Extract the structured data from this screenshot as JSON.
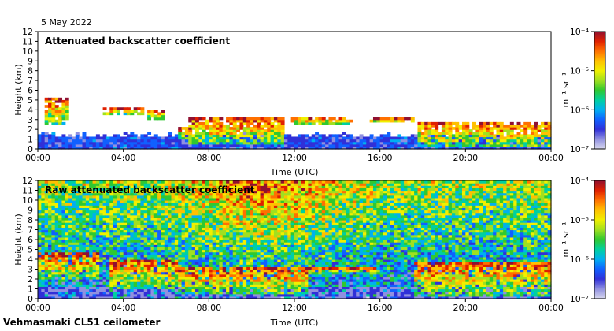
{
  "header": {
    "date": "5 May 2022"
  },
  "footer": {
    "instrument": "Vehmasmaki CL51 ceilometer"
  },
  "colormap": [
    "#d8d8ee",
    "#9090e0",
    "#3030d8",
    "#1060ff",
    "#00b0f0",
    "#00d0a0",
    "#30c830",
    "#a0e020",
    "#f0f000",
    "#ffc000",
    "#ff7000",
    "#e02000",
    "#901030"
  ],
  "chart_data": [
    {
      "type": "heatmap",
      "title": "Attenuated backscatter coefficient",
      "xlabel": "Time (UTC)",
      "ylabel": "Height (km)",
      "xticks": [
        "00:00",
        "04:00",
        "08:00",
        "12:00",
        "16:00",
        "20:00",
        "00:00"
      ],
      "xlim": [
        0,
        24
      ],
      "ylim": [
        0,
        12
      ],
      "yticks": [
        0,
        1,
        2,
        3,
        4,
        5,
        6,
        7,
        8,
        9,
        10,
        11,
        12
      ],
      "colorbar": {
        "unit": "m⁻¹ sr⁻¹",
        "ticks": [
          "10⁻⁷",
          "10⁻⁶",
          "10⁻⁵",
          "10⁻⁴"
        ],
        "range": [
          -7,
          -4
        ],
        "scale": "log"
      },
      "layers": [
        {
          "t": [
            0.2,
            1.3
          ],
          "h": [
            2.5,
            5.0
          ]
        },
        {
          "t": [
            2.9,
            4.9
          ],
          "h": [
            3.4,
            4.0
          ]
        },
        {
          "t": [
            5.0,
            5.9
          ],
          "h": [
            3.0,
            3.8
          ]
        },
        {
          "t": [
            6.5,
            7.1
          ],
          "h": [
            1.0,
            2.0
          ]
        },
        {
          "t": [
            7.0,
            11.5
          ],
          "h": [
            0.5,
            3.0
          ]
        },
        {
          "t": [
            11.7,
            14.6
          ],
          "h": [
            2.3,
            3.2
          ]
        },
        {
          "t": [
            15.5,
            17.5
          ],
          "h": [
            2.6,
            3.0
          ]
        },
        {
          "t": [
            17.7,
            24.0
          ],
          "h": [
            0.1,
            2.6
          ]
        }
      ]
    },
    {
      "type": "heatmap",
      "title": "Raw attenuated backscatter coefficient",
      "xlabel": "Time (UTC)",
      "ylabel": "Height (km)",
      "xticks": [
        "00:00",
        "04:00",
        "08:00",
        "12:00",
        "16:00",
        "20:00",
        "00:00"
      ],
      "xlim": [
        0,
        24
      ],
      "ylim": [
        0,
        12
      ],
      "yticks": [
        0,
        1,
        2,
        3,
        4,
        5,
        6,
        7,
        8,
        9,
        10,
        11,
        12
      ],
      "colorbar": {
        "unit": "m⁻¹ sr⁻¹",
        "ticks": [
          "10⁻⁷",
          "10⁻⁶",
          "10⁻⁵",
          "10⁻⁴"
        ],
        "range": [
          -7,
          -4
        ],
        "scale": "log"
      },
      "layers": [
        {
          "t": [
            0.0,
            2.8
          ],
          "h": [
            1.8,
            4.5
          ]
        },
        {
          "t": [
            3.3,
            6.5
          ],
          "h": [
            1.0,
            3.8
          ]
        },
        {
          "t": [
            6.5,
            12.5
          ],
          "h": [
            0.3,
            3.0
          ]
        },
        {
          "t": [
            12.5,
            16.0
          ],
          "h": [
            2.5,
            3.0
          ]
        },
        {
          "t": [
            17.6,
            24.0
          ],
          "h": [
            0.2,
            3.6
          ]
        }
      ]
    }
  ]
}
